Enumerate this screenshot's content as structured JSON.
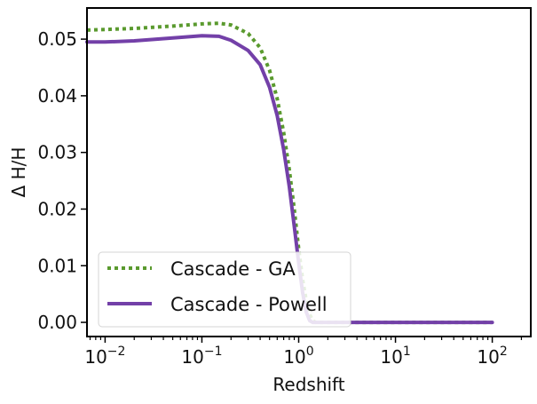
{
  "chart_data": {
    "type": "line",
    "title": "",
    "xlabel": "Redshift",
    "ylabel": "Δ H/H",
    "xscale": "log",
    "xlim": [
      0.0065,
      250
    ],
    "ylim": [
      -0.0025,
      0.0555
    ],
    "x_major_ticks": [
      {
        "value": 0.01,
        "base": "10",
        "exp": "−2"
      },
      {
        "value": 0.1,
        "base": "10",
        "exp": "−1"
      },
      {
        "value": 1,
        "base": "10",
        "exp": "0"
      },
      {
        "value": 10,
        "base": "10",
        "exp": "1"
      },
      {
        "value": 100,
        "base": "10",
        "exp": "2"
      }
    ],
    "y_ticks": [
      {
        "value": 0.0,
        "label": "0.00"
      },
      {
        "value": 0.01,
        "label": "0.01"
      },
      {
        "value": 0.02,
        "label": "0.02"
      },
      {
        "value": 0.03,
        "label": "0.03"
      },
      {
        "value": 0.04,
        "label": "0.04"
      },
      {
        "value": 0.05,
        "label": "0.05"
      }
    ],
    "legend_position": "lower-left",
    "series": [
      {
        "name": "Cascade - GA",
        "color": "#5a9a2e",
        "style": "dotted",
        "x": [
          0.0065,
          0.01,
          0.02,
          0.05,
          0.1,
          0.15,
          0.2,
          0.3,
          0.4,
          0.5,
          0.6,
          0.7,
          0.8,
          0.9,
          1.0,
          1.1,
          1.2,
          1.3,
          1.4,
          1.5,
          1.6,
          2,
          5,
          10,
          50,
          100
        ],
        "y": [
          0.0516,
          0.0517,
          0.0519,
          0.0523,
          0.0527,
          0.0528,
          0.0525,
          0.051,
          0.0485,
          0.0445,
          0.0395,
          0.0335,
          0.027,
          0.02,
          0.013,
          0.0075,
          0.0038,
          0.0014,
          0.0003,
          0.0,
          0.0,
          0.0,
          0.0,
          0.0,
          0.0,
          0.0
        ]
      },
      {
        "name": "Cascade - Powell",
        "color": "#7340a8",
        "style": "solid",
        "x": [
          0.0065,
          0.01,
          0.02,
          0.05,
          0.1,
          0.15,
          0.2,
          0.3,
          0.4,
          0.5,
          0.6,
          0.7,
          0.8,
          0.9,
          1.0,
          1.1,
          1.2,
          1.3,
          1.4,
          1.5,
          2,
          5,
          10,
          50,
          100
        ],
        "y": [
          0.0495,
          0.0495,
          0.0497,
          0.0502,
          0.0506,
          0.0505,
          0.0498,
          0.048,
          0.0455,
          0.0415,
          0.0365,
          0.0305,
          0.024,
          0.017,
          0.0105,
          0.0052,
          0.0018,
          0.0003,
          0.0,
          0.0,
          0.0,
          0.0,
          0.0,
          0.0,
          0.0
        ]
      }
    ]
  }
}
